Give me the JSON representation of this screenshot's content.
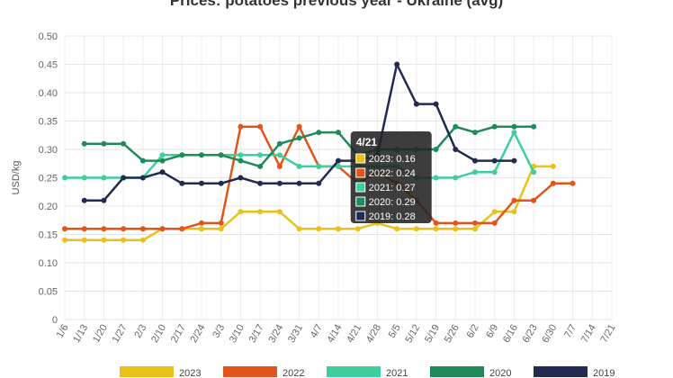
{
  "chart_data": {
    "type": "line",
    "title": "Prices: potatoes previous year - Ukraine (avg)",
    "ylabel": "USD/kg",
    "xlabel": "",
    "ylim": [
      0,
      0.5
    ],
    "yticks": [
      "0",
      "0.05",
      "0.10",
      "0.15",
      "0.20",
      "0.25",
      "0.30",
      "0.35",
      "0.40",
      "0.45",
      "0.50"
    ],
    "categories": [
      "1/6",
      "1/13",
      "1/20",
      "1/27",
      "2/3",
      "2/10",
      "2/17",
      "2/24",
      "3/3",
      "3/10",
      "3/17",
      "3/24",
      "3/31",
      "4/7",
      "4/14",
      "4/21",
      "4/28",
      "5/5",
      "5/12",
      "5/19",
      "5/26",
      "6/2",
      "6/9",
      "6/16",
      "6/23",
      "6/30",
      "7/7",
      "7/14",
      "7/21"
    ],
    "grid": true,
    "legend_position": "bottom",
    "series": [
      {
        "name": "2023",
        "color": "#e8c21a",
        "values": [
          0.14,
          0.14,
          0.14,
          0.14,
          0.14,
          0.16,
          0.16,
          0.16,
          0.16,
          0.19,
          0.19,
          0.19,
          0.16,
          0.16,
          0.16,
          0.16,
          0.17,
          0.16,
          0.16,
          0.16,
          0.16,
          0.16,
          0.19,
          0.19,
          0.27,
          0.27,
          null,
          null,
          null
        ]
      },
      {
        "name": "2022",
        "color": "#e2541a",
        "values": [
          0.16,
          0.16,
          0.16,
          0.16,
          0.16,
          0.16,
          0.16,
          0.17,
          0.17,
          0.34,
          0.34,
          0.27,
          0.34,
          0.27,
          0.27,
          0.24,
          0.26,
          0.24,
          0.21,
          0.17,
          0.17,
          0.17,
          0.17,
          0.21,
          0.21,
          0.24,
          0.24,
          null,
          null
        ]
      },
      {
        "name": "2021",
        "color": "#3ecf9a",
        "values": [
          0.25,
          0.25,
          0.25,
          0.25,
          0.25,
          0.29,
          0.29,
          0.29,
          0.29,
          0.29,
          0.29,
          0.29,
          0.27,
          0.27,
          0.27,
          0.27,
          0.27,
          0.27,
          0.25,
          0.25,
          0.25,
          0.26,
          0.26,
          0.33,
          0.26,
          null,
          null,
          null,
          null
        ]
      },
      {
        "name": "2020",
        "color": "#1f8b5a",
        "values": [
          null,
          0.31,
          0.31,
          0.31,
          0.28,
          0.28,
          0.29,
          0.29,
          0.29,
          0.28,
          0.27,
          0.31,
          0.32,
          0.33,
          0.33,
          0.29,
          0.3,
          0.3,
          0.3,
          0.3,
          0.34,
          0.33,
          0.34,
          0.34,
          0.34,
          null,
          null,
          null,
          null
        ]
      },
      {
        "name": "2019",
        "color": "#222a52",
        "values": [
          null,
          0.21,
          0.21,
          0.25,
          0.25,
          0.26,
          0.24,
          0.24,
          0.24,
          0.25,
          0.24,
          0.24,
          0.24,
          0.24,
          0.28,
          0.28,
          0.29,
          0.45,
          0.38,
          0.38,
          0.3,
          0.28,
          0.28,
          0.28,
          null,
          null,
          null,
          null,
          null
        ]
      }
    ],
    "tooltip": {
      "category": "4/21",
      "lines": [
        "2023: 0.16",
        "2022: 0.24",
        "2021: 0.27",
        "2020: 0.29",
        "2019: 0.28"
      ]
    }
  }
}
